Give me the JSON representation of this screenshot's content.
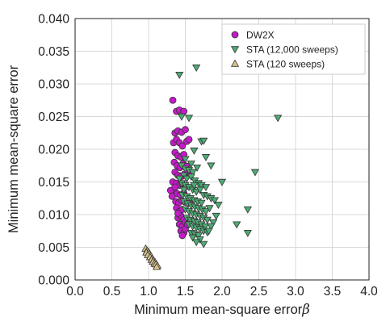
{
  "chart_data": {
    "type": "scatter",
    "title": "",
    "xlabel": "Minimum mean-square error",
    "xlabel_symbol": "β",
    "ylabel": "Minimum mean-square error",
    "xlim": [
      0.0,
      4.0
    ],
    "ylim": [
      0.0,
      0.04
    ],
    "x_ticks": [
      "0.0",
      "0.5",
      "1.0",
      "1.5",
      "2.0",
      "2.5",
      "3.0",
      "3.5",
      "4.0"
    ],
    "y_ticks": [
      "0.000",
      "0.005",
      "0.010",
      "0.015",
      "0.020",
      "0.025",
      "0.030",
      "0.035",
      "0.040"
    ],
    "grid": true,
    "legend_position": "top-right",
    "series": [
      {
        "name": "DW2X",
        "marker": "circle",
        "color": "#c41bc9",
        "points": [
          [
            1.33,
            0.0275
          ],
          [
            1.38,
            0.0258
          ],
          [
            1.42,
            0.026
          ],
          [
            1.48,
            0.0258
          ],
          [
            1.36,
            0.0225
          ],
          [
            1.4,
            0.0228
          ],
          [
            1.45,
            0.0226
          ],
          [
            1.5,
            0.023
          ],
          [
            1.34,
            0.021
          ],
          [
            1.38,
            0.0215
          ],
          [
            1.42,
            0.021
          ],
          [
            1.46,
            0.0205
          ],
          [
            1.52,
            0.0212
          ],
          [
            1.36,
            0.0195
          ],
          [
            1.4,
            0.019
          ],
          [
            1.44,
            0.0188
          ],
          [
            1.48,
            0.0192
          ],
          [
            1.35,
            0.018
          ],
          [
            1.39,
            0.0175
          ],
          [
            1.43,
            0.0172
          ],
          [
            1.47,
            0.0178
          ],
          [
            1.52,
            0.0174
          ],
          [
            1.36,
            0.0165
          ],
          [
            1.4,
            0.016
          ],
          [
            1.44,
            0.0158
          ],
          [
            1.49,
            0.0162
          ],
          [
            1.33,
            0.015
          ],
          [
            1.38,
            0.0148
          ],
          [
            1.42,
            0.0145
          ],
          [
            1.46,
            0.0147
          ],
          [
            1.51,
            0.0143
          ],
          [
            1.35,
            0.0135
          ],
          [
            1.39,
            0.0132
          ],
          [
            1.43,
            0.013
          ],
          [
            1.48,
            0.0133
          ],
          [
            1.3,
            0.0137
          ],
          [
            1.37,
            0.012
          ],
          [
            1.41,
            0.0118
          ],
          [
            1.45,
            0.0122
          ],
          [
            1.5,
            0.0119
          ],
          [
            1.38,
            0.011
          ],
          [
            1.42,
            0.0105
          ],
          [
            1.46,
            0.0108
          ],
          [
            1.4,
            0.0095
          ],
          [
            1.44,
            0.0098
          ],
          [
            1.48,
            0.0092
          ],
          [
            1.42,
            0.0085
          ],
          [
            1.46,
            0.0082
          ],
          [
            1.5,
            0.0088
          ],
          [
            1.44,
            0.0075
          ],
          [
            1.48,
            0.0072
          ],
          [
            1.46,
            0.0068
          ],
          [
            1.5,
            0.0078
          ],
          [
            1.53,
            0.0085
          ],
          [
            1.4,
            0.0102
          ],
          [
            1.36,
            0.0142
          ],
          [
            1.32,
            0.0128
          ],
          [
            1.55,
            0.0215
          ],
          [
            1.54,
            0.0165
          ],
          [
            1.56,
            0.0118
          ]
        ]
      },
      {
        "name": "STA (12,000 sweeps)",
        "marker": "triangle-down",
        "color": "#4dab74",
        "points": [
          [
            1.65,
            0.0325
          ],
          [
            1.42,
            0.0314
          ],
          [
            2.76,
            0.0248
          ],
          [
            1.55,
            0.0248
          ],
          [
            1.45,
            0.025
          ],
          [
            1.72,
            0.0212
          ],
          [
            1.75,
            0.0213
          ],
          [
            1.62,
            0.0198
          ],
          [
            1.78,
            0.0188
          ],
          [
            1.85,
            0.0175
          ],
          [
            2.45,
            0.0165
          ],
          [
            2.0,
            0.015
          ],
          [
            1.45,
            0.0175
          ],
          [
            1.5,
            0.017
          ],
          [
            1.55,
            0.0168
          ],
          [
            1.6,
            0.0165
          ],
          [
            1.48,
            0.016
          ],
          [
            1.52,
            0.0155
          ],
          [
            1.58,
            0.0158
          ],
          [
            1.63,
            0.0152
          ],
          [
            1.68,
            0.0148
          ],
          [
            1.72,
            0.0145
          ],
          [
            1.45,
            0.0148
          ],
          [
            1.5,
            0.0145
          ],
          [
            1.55,
            0.0142
          ],
          [
            1.6,
            0.0138
          ],
          [
            1.65,
            0.0135
          ],
          [
            1.7,
            0.0138
          ],
          [
            1.75,
            0.013
          ],
          [
            1.8,
            0.0128
          ],
          [
            1.85,
            0.0125
          ],
          [
            1.9,
            0.0122
          ],
          [
            1.46,
            0.013
          ],
          [
            1.52,
            0.0128
          ],
          [
            1.57,
            0.0125
          ],
          [
            1.62,
            0.0122
          ],
          [
            1.67,
            0.012
          ],
          [
            1.72,
            0.0118
          ],
          [
            1.48,
            0.012
          ],
          [
            1.53,
            0.0117
          ],
          [
            1.58,
            0.0114
          ],
          [
            1.63,
            0.0112
          ],
          [
            1.68,
            0.011
          ],
          [
            1.73,
            0.0108
          ],
          [
            1.78,
            0.0105
          ],
          [
            1.83,
            0.011
          ],
          [
            1.95,
            0.0115
          ],
          [
            1.5,
            0.0108
          ],
          [
            1.55,
            0.0105
          ],
          [
            1.6,
            0.0102
          ],
          [
            1.65,
            0.01
          ],
          [
            1.7,
            0.0098
          ],
          [
            1.75,
            0.0095
          ],
          [
            1.8,
            0.0092
          ],
          [
            1.52,
            0.0095
          ],
          [
            1.57,
            0.0092
          ],
          [
            1.62,
            0.009
          ],
          [
            1.67,
            0.0088
          ],
          [
            1.72,
            0.0085
          ],
          [
            1.77,
            0.0082
          ],
          [
            1.55,
            0.0085
          ],
          [
            1.6,
            0.0082
          ],
          [
            1.65,
            0.008
          ],
          [
            1.7,
            0.0078
          ],
          [
            1.75,
            0.0075
          ],
          [
            1.8,
            0.0073
          ],
          [
            1.58,
            0.0072
          ],
          [
            1.63,
            0.007
          ],
          [
            1.68,
            0.0068
          ],
          [
            1.6,
            0.0065
          ],
          [
            1.7,
            0.0062
          ],
          [
            1.65,
            0.0058
          ],
          [
            1.75,
            0.0055
          ],
          [
            2.35,
            0.0108
          ],
          [
            2.35,
            0.0072
          ],
          [
            2.2,
            0.0085
          ],
          [
            1.92,
            0.0098
          ],
          [
            1.88,
            0.0088
          ],
          [
            1.85,
            0.0082
          ],
          [
            1.82,
            0.0075
          ],
          [
            1.48,
            0.0138
          ],
          [
            1.62,
            0.0145
          ],
          [
            1.78,
            0.0142
          ],
          [
            1.42,
            0.0155
          ],
          [
            1.5,
            0.0185
          ],
          [
            1.58,
            0.0178
          ],
          [
            1.66,
            0.0172
          ]
        ]
      },
      {
        "name": "STA (120 sweeps)",
        "marker": "triangle-up",
        "color": "#d9c38c",
        "points": [
          [
            0.96,
            0.0048
          ],
          [
            0.98,
            0.0045
          ],
          [
            1.0,
            0.0043
          ],
          [
            0.97,
            0.0042
          ],
          [
            1.01,
            0.004
          ],
          [
            0.99,
            0.0038
          ],
          [
            1.03,
            0.0037
          ],
          [
            1.02,
            0.0035
          ],
          [
            1.05,
            0.0033
          ],
          [
            1.04,
            0.0031
          ],
          [
            1.07,
            0.003
          ],
          [
            1.06,
            0.0028
          ],
          [
            1.09,
            0.0027
          ],
          [
            1.08,
            0.0025
          ],
          [
            1.1,
            0.0024
          ],
          [
            1.12,
            0.0022
          ],
          [
            1.11,
            0.002
          ]
        ]
      }
    ]
  }
}
